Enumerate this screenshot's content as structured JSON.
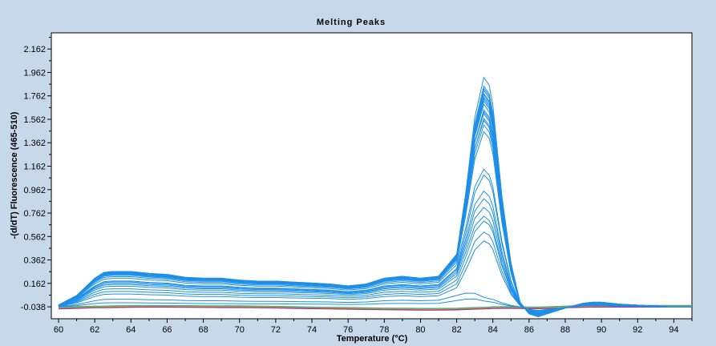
{
  "chart_data": {
    "type": "line",
    "title": "Melting Peaks",
    "xlabel": "Temperature (°C)",
    "ylabel": "-(d/dT) Fluorescence (465-510)",
    "xlim": [
      59.6,
      95.0
    ],
    "ylim": [
      -0.14,
      2.3
    ],
    "x_ticks": [
      "60",
      "62",
      "64",
      "66",
      "68",
      "70",
      "72",
      "74",
      "76",
      "78",
      "80",
      "82",
      "84",
      "86",
      "88",
      "90",
      "92",
      "94"
    ],
    "y_ticks": [
      "-0.038",
      "0.162",
      "0.362",
      "0.562",
      "0.762",
      "0.962",
      "1.162",
      "1.362",
      "1.562",
      "1.762",
      "1.962",
      "2.162"
    ],
    "grid": false,
    "legend": "none",
    "colors": {
      "positive": "#1e8fe8",
      "negative": [
        "#2a8a2a",
        "#d03030",
        "#3050d0",
        "#20b0b0",
        "#a030a0",
        "#c0a020"
      ]
    },
    "x": [
      60,
      61,
      62,
      62.5,
      63,
      64,
      65,
      66,
      67,
      68,
      69,
      70,
      71,
      72,
      73,
      74,
      75,
      76,
      77,
      78,
      79,
      80,
      81,
      82,
      82.5,
      83,
      83.5,
      83.8,
      84,
      84.5,
      85,
      85.5,
      86,
      86.5,
      87,
      88,
      89,
      89.5,
      90,
      91,
      92,
      93,
      94,
      95
    ],
    "positive_series": {
      "shape": [
        0.02,
        0.12,
        0.3,
        0.36,
        0.37,
        0.37,
        0.35,
        0.34,
        0.31,
        0.3,
        0.3,
        0.28,
        0.27,
        0.27,
        0.26,
        0.25,
        0.24,
        0.22,
        0.24,
        0.3,
        0.32,
        0.3,
        0.32,
        0.55,
        0.8,
        1.0,
        0.97,
        0.9,
        0.82,
        0.45,
        0.18,
        0.02,
        -0.07,
        -0.1,
        -0.07,
        -0.01,
        0.04,
        0.05,
        0.05,
        0.03,
        0.02,
        0.01,
        0.0,
        0.0
      ],
      "scales": [
        [
          0.78,
          1.95
        ],
        [
          0.8,
          2.02
        ],
        [
          0.82,
          2.1
        ],
        [
          0.79,
          1.98
        ],
        [
          0.77,
          1.92
        ],
        [
          0.81,
          1.9
        ],
        [
          0.78,
          1.88
        ],
        [
          0.8,
          1.85
        ],
        [
          0.76,
          1.8
        ],
        [
          0.79,
          1.78
        ],
        [
          0.82,
          1.76
        ],
        [
          0.75,
          1.72
        ],
        [
          0.78,
          1.7
        ],
        [
          0.73,
          1.66
        ],
        [
          0.7,
          1.6
        ],
        [
          0.8,
          1.94
        ],
        [
          0.77,
          2.0
        ],
        [
          0.66,
          1.25
        ],
        [
          0.6,
          1.2
        ],
        [
          0.58,
          1.05
        ],
        [
          0.55,
          0.98
        ],
        [
          0.52,
          0.9
        ],
        [
          0.48,
          0.82
        ],
        [
          0.42,
          0.78
        ],
        [
          0.36,
          0.68
        ],
        [
          0.3,
          0.6
        ],
        [
          0.18,
          0.08
        ],
        [
          0.1,
          0.05
        ]
      ]
    },
    "negative_series": {
      "y": [
        -0.05,
        -0.045,
        -0.04,
        -0.04,
        -0.038,
        -0.036,
        -0.035,
        -0.035,
        -0.036,
        -0.037,
        -0.038,
        -0.038,
        -0.04,
        -0.042,
        -0.045,
        -0.048,
        -0.05,
        -0.052,
        -0.055,
        -0.057,
        -0.058,
        -0.06,
        -0.06,
        -0.058,
        -0.055,
        -0.052,
        -0.05,
        -0.048,
        -0.046,
        -0.045,
        -0.045,
        -0.046,
        -0.048,
        -0.048,
        -0.046,
        -0.04,
        -0.036,
        -0.034,
        -0.034,
        -0.034,
        -0.034,
        -0.034,
        -0.034,
        -0.034
      ],
      "offsets": [
        0.0,
        0.004,
        -0.004,
        0.008,
        -0.006,
        0.002
      ]
    }
  }
}
